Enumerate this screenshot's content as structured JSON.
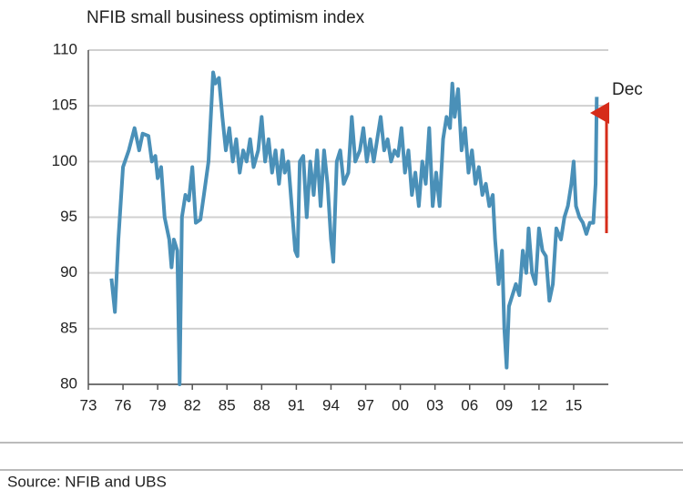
{
  "chart_data": {
    "type": "line",
    "title": "NFIB small business optimism index",
    "source": "Source: NFIB and UBS",
    "annotation": "Dec",
    "color": "#4a90b8",
    "x": [
      1975.0,
      1975.3,
      1975.6,
      1976.0,
      1976.5,
      1977.0,
      1977.4,
      1977.7,
      1978.2,
      1978.5,
      1978.8,
      1979.0,
      1979.3,
      1979.6,
      1980.0,
      1980.2,
      1980.4,
      1980.7,
      1980.9,
      1981.1,
      1981.4,
      1981.7,
      1982.0,
      1982.3,
      1982.7,
      1983.0,
      1983.4,
      1983.8,
      1984.0,
      1984.3,
      1984.6,
      1984.9,
      1985.2,
      1985.5,
      1985.8,
      1986.1,
      1986.4,
      1986.7,
      1987.0,
      1987.3,
      1987.7,
      1988.0,
      1988.3,
      1988.6,
      1988.9,
      1989.2,
      1989.5,
      1989.8,
      1990.0,
      1990.3,
      1990.6,
      1990.9,
      1991.1,
      1991.3,
      1991.6,
      1991.9,
      1992.2,
      1992.5,
      1992.8,
      1993.1,
      1993.4,
      1993.7,
      1994.0,
      1994.2,
      1994.5,
      1994.8,
      1995.1,
      1995.5,
      1995.8,
      1996.1,
      1996.5,
      1996.8,
      1997.1,
      1997.4,
      1997.7,
      1998.0,
      1998.3,
      1998.6,
      1998.9,
      1999.2,
      1999.5,
      1999.8,
      2000.1,
      2000.4,
      2000.7,
      2001.0,
      2001.3,
      2001.6,
      2001.9,
      2002.2,
      2002.5,
      2002.8,
      2003.1,
      2003.4,
      2003.7,
      2004.0,
      2004.3,
      2004.5,
      2004.7,
      2005.0,
      2005.3,
      2005.6,
      2005.9,
      2006.2,
      2006.5,
      2006.8,
      2007.1,
      2007.4,
      2007.7,
      2008.0,
      2008.2,
      2008.5,
      2008.8,
      2009.0,
      2009.2,
      2009.4,
      2009.7,
      2010.0,
      2010.3,
      2010.6,
      2010.9,
      2011.1,
      2011.4,
      2011.7,
      2012.0,
      2012.3,
      2012.6,
      2012.9,
      2013.2,
      2013.5,
      2013.9,
      2014.2,
      2014.5,
      2014.8,
      2015.0,
      2015.2,
      2015.5,
      2015.8,
      2016.1,
      2016.4,
      2016.7,
      2016.9,
      2017.0
    ],
    "values": [
      89.5,
      86.5,
      93,
      99.5,
      101,
      103,
      101,
      102.5,
      102.3,
      100,
      100.5,
      98.5,
      99.5,
      95,
      93,
      90.5,
      93,
      92,
      80,
      95,
      97,
      96.5,
      99.5,
      94.5,
      94.8,
      97,
      100,
      108,
      107,
      107.5,
      104,
      101,
      103,
      100,
      102,
      99,
      101,
      100,
      102,
      99.5,
      101,
      104,
      100,
      102,
      99,
      101,
      98,
      101,
      99,
      100,
      96,
      92,
      91.5,
      100,
      100.5,
      95,
      100,
      97,
      101,
      96,
      101,
      98,
      93,
      91,
      100,
      101,
      98,
      99,
      104,
      100,
      101,
      103,
      100,
      102,
      100,
      102,
      104,
      101,
      102,
      100,
      101,
      100.5,
      103,
      99,
      101,
      97,
      99,
      96,
      100,
      98,
      103,
      96,
      99,
      96,
      102,
      104,
      103,
      107,
      104,
      106.5,
      101,
      103,
      99,
      101,
      98,
      99.5,
      97,
      98,
      96,
      97,
      93,
      89,
      92,
      85,
      81.5,
      87,
      88,
      89,
      88,
      92,
      90,
      94,
      90,
      89,
      94,
      92,
      91.5,
      87.5,
      89,
      94,
      93,
      95,
      96,
      98,
      100,
      96,
      95,
      94.5,
      93.5,
      94.5,
      94.5,
      98,
      105.8
    ],
    "xlim": [
      1973,
      2018
    ],
    "xticks": [
      {
        "value": 1973,
        "label": "73"
      },
      {
        "value": 1976,
        "label": "76"
      },
      {
        "value": 1979,
        "label": "79"
      },
      {
        "value": 1982,
        "label": "82"
      },
      {
        "value": 1985,
        "label": "85"
      },
      {
        "value": 1988,
        "label": "88"
      },
      {
        "value": 1991,
        "label": "91"
      },
      {
        "value": 1994,
        "label": "94"
      },
      {
        "value": 1997,
        "label": "97"
      },
      {
        "value": 2000,
        "label": "00"
      },
      {
        "value": 2003,
        "label": "03"
      },
      {
        "value": 2006,
        "label": "06"
      },
      {
        "value": 2009,
        "label": "09"
      },
      {
        "value": 2012,
        "label": "12"
      },
      {
        "value": 2015,
        "label": "15"
      }
    ],
    "ylim": [
      80,
      110
    ],
    "yticks": [
      80,
      85,
      90,
      95,
      100,
      105,
      110
    ],
    "grid": true
  }
}
